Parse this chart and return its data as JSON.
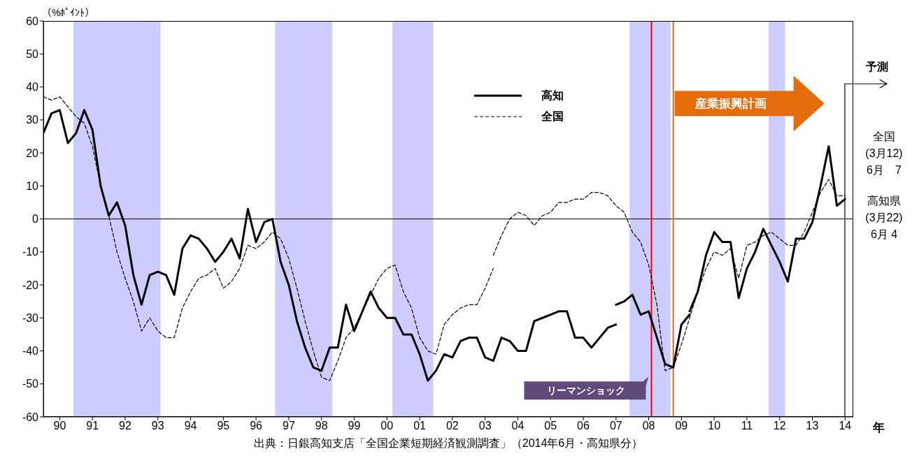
{
  "chart_data": {
    "type": "line",
    "ylabel": "（%ﾎﾟｲﾝﾄ）",
    "xlabel": "年",
    "xlim": [
      "1990-01",
      "2014-10"
    ],
    "ylim": [
      -60,
      60
    ],
    "yticks": [
      -60,
      -50,
      -40,
      -30,
      -20,
      -10,
      0,
      10,
      20,
      30,
      40,
      50,
      60
    ],
    "xticks": [
      {
        "value": "1990-07",
        "label": "90"
      },
      {
        "value": "1991-07",
        "label": "91"
      },
      {
        "value": "1992-07",
        "label": "92"
      },
      {
        "value": "1993-07",
        "label": "93"
      },
      {
        "value": "1994-07",
        "label": "94"
      },
      {
        "value": "1995-07",
        "label": "95"
      },
      {
        "value": "1996-07",
        "label": "96"
      },
      {
        "value": "1997-07",
        "label": "97"
      },
      {
        "value": "1998-07",
        "label": "98"
      },
      {
        "value": "1999-07",
        "label": "99"
      },
      {
        "value": "2000-07",
        "label": "00"
      },
      {
        "value": "2001-07",
        "label": "01"
      },
      {
        "value": "2002-07",
        "label": "02"
      },
      {
        "value": "2003-07",
        "label": "03"
      },
      {
        "value": "2004-07",
        "label": "04"
      },
      {
        "value": "2005-07",
        "label": "05"
      },
      {
        "value": "2006-07",
        "label": "06"
      },
      {
        "value": "2007-07",
        "label": "07"
      },
      {
        "value": "2008-07",
        "label": "08"
      },
      {
        "value": "2009-07",
        "label": "09"
      },
      {
        "value": "2010-07",
        "label": "10"
      },
      {
        "value": "2011-07",
        "label": "11"
      },
      {
        "value": "2012-07",
        "label": "12"
      },
      {
        "value": "2013-07",
        "label": "13"
      },
      {
        "value": "2014-07",
        "label": "14"
      }
    ],
    "grid": false,
    "legend": "top",
    "series": [
      {
        "name": "高知",
        "color": "#000000",
        "line_style": "solid",
        "x": [
          "1990-01",
          "1990-04",
          "1990-07",
          "1990-10",
          "1991-01",
          "1991-04",
          "1991-07",
          "1991-10",
          "1992-01",
          "1992-04",
          "1992-07",
          "1992-10",
          "1993-01",
          "1993-04",
          "1993-07",
          "1993-10",
          "1994-01",
          "1994-04",
          "1994-07",
          "1994-10",
          "1995-01",
          "1995-04",
          "1995-07",
          "1995-10",
          "1996-01",
          "1996-04",
          "1996-07",
          "1996-10",
          "1997-01",
          "1997-04",
          "1997-07",
          "1997-10",
          "1998-01",
          "1998-04",
          "1998-07",
          "1998-10",
          "1999-01",
          "1999-04",
          "1999-07",
          "1999-10",
          "2000-01",
          "2000-04",
          "2000-07",
          "2000-10",
          "2001-01",
          "2001-04",
          "2001-07",
          "2001-10",
          "2002-01",
          "2002-04",
          "2002-07",
          "2002-10",
          "2003-01",
          "2003-04",
          "2003-07",
          "2003-10",
          "2004-01",
          "2004-04",
          "2004-07",
          "2004-10",
          "2005-01",
          "2005-04",
          "2005-07",
          "2005-10",
          "2006-01",
          "2006-04",
          "2006-07",
          "2006-10",
          "2007-01",
          "2007-04",
          "2007-07"
        ],
        "values": [
          26,
          32,
          33,
          23,
          26,
          33,
          27,
          10,
          1,
          5,
          -2,
          -17,
          -26,
          -17,
          -16,
          -17,
          -23,
          -9,
          -5,
          -6,
          -9,
          -13,
          -10,
          -6,
          -12,
          3,
          -7,
          -1,
          0,
          -13,
          -20,
          -31,
          -39,
          -45,
          -46,
          -39,
          -39,
          -26,
          -34,
          -28,
          -22,
          -27,
          -30,
          -30,
          -35,
          -35,
          -41,
          -49,
          -46,
          -41,
          -42,
          -37,
          -36,
          -36,
          -42,
          -43,
          -36,
          -37,
          -40,
          -40,
          -31,
          -30,
          -29,
          -28,
          -28,
          -36,
          -36,
          -39,
          -36,
          -33,
          -32
        ]
      },
      {
        "color": "#000000",
        "line_style": "solid",
        "x": [
          "2007-07",
          "2007-10",
          "2008-01",
          "2008-04",
          "2008-07",
          "2008-10",
          "2009-01",
          "2009-04",
          "2009-07",
          "2009-10"
        ],
        "values": [
          -26,
          -25,
          -23,
          -29,
          -28,
          -36,
          -44,
          -45,
          -32,
          -29
        ]
      },
      {
        "color": "#000000",
        "line_style": "solid",
        "x": [
          "2009-10",
          "2010-01",
          "2010-04",
          "2010-07",
          "2010-10",
          "2011-01",
          "2011-04",
          "2011-07",
          "2011-10",
          "2012-01",
          "2012-04",
          "2012-07",
          "2012-10",
          "2013-01",
          "2013-04",
          "2013-07",
          "2013-10",
          "2014-01",
          "2014-04",
          "2014-07"
        ],
        "values": [
          -28,
          -22,
          -11,
          -4,
          -7,
          -7,
          -24,
          -15,
          -10,
          -3,
          -8,
          -13,
          -19,
          -6,
          -6,
          -1,
          10,
          22,
          4,
          6
        ]
      },
      {
        "name": "全国",
        "color": "#000000",
        "line_style": "dashed",
        "x": [
          "1990-01",
          "1990-04",
          "1990-07",
          "1990-10",
          "1991-01",
          "1991-04",
          "1991-07",
          "1991-10",
          "1992-01",
          "1992-04",
          "1992-07",
          "1992-10",
          "1993-01",
          "1993-04",
          "1993-07",
          "1993-10",
          "1994-01",
          "1994-04",
          "1994-07",
          "1994-10",
          "1995-01",
          "1995-04",
          "1995-07",
          "1995-10",
          "1996-01",
          "1996-04",
          "1996-07",
          "1996-10",
          "1997-01",
          "1997-04",
          "1997-07",
          "1997-10",
          "1998-01",
          "1998-04",
          "1998-07",
          "1998-10",
          "1999-01",
          "1999-04",
          "1999-07",
          "1999-10",
          "2000-01",
          "2000-04",
          "2000-07",
          "2000-10",
          "2001-01",
          "2001-04",
          "2001-07",
          "2001-10",
          "2002-01",
          "2002-04",
          "2002-07",
          "2002-10",
          "2003-01",
          "2003-04",
          "2003-07",
          "2003-10"
        ],
        "values": [
          37,
          36,
          37,
          34,
          31,
          29,
          22,
          10,
          1,
          -10,
          -18,
          -25,
          -34,
          -30,
          -34,
          -36,
          -36,
          -27,
          -22,
          -18,
          -17,
          -15,
          -21,
          -19,
          -15,
          -8,
          -9,
          -7,
          -4,
          -6,
          -12,
          -21,
          -31,
          -40,
          -48,
          -49,
          -43,
          -36,
          -33,
          -28,
          -23,
          -18,
          -15,
          -14,
          -22,
          -27,
          -36,
          -40,
          -41,
          -32,
          -29,
          -27,
          -26,
          -26,
          -21,
          -15
        ]
      },
      {
        "color": "#000000",
        "line_style": "dashed",
        "x": [
          "2003-10",
          "2004-01",
          "2004-04",
          "2004-07",
          "2004-10",
          "2005-01",
          "2005-04",
          "2005-07",
          "2005-10",
          "2006-01",
          "2006-04",
          "2006-07",
          "2006-10",
          "2007-01",
          "2007-04",
          "2007-07",
          "2007-10",
          "2008-01",
          "2008-04",
          "2008-07",
          "2008-10",
          "2009-01",
          "2009-04",
          "2009-07",
          "2009-10",
          "2010-01",
          "2010-04",
          "2010-07",
          "2010-10",
          "2011-01",
          "2011-04",
          "2011-07",
          "2011-10",
          "2012-01",
          "2012-04",
          "2012-07",
          "2012-10",
          "2013-01",
          "2013-04",
          "2013-07",
          "2013-10",
          "2014-01",
          "2014-04",
          "2014-07"
        ],
        "values": [
          -11,
          -5,
          0,
          2,
          1,
          -2,
          1,
          2,
          5,
          5,
          6,
          6,
          8,
          8,
          7,
          4,
          2,
          -4,
          -7,
          -14,
          -26,
          -46,
          -45,
          -38,
          -30,
          -22,
          -15,
          -10,
          -11,
          -9,
          -18,
          -8,
          -7,
          -5,
          -4,
          -6,
          -8,
          -8,
          -4,
          2,
          8,
          12,
          7,
          7
        ]
      }
    ],
    "bands": [
      {
        "axis": "x",
        "from": "1990-12",
        "to": "1993-08",
        "color": "#ccccff"
      },
      {
        "axis": "x",
        "from": "1997-02",
        "to": "1998-11",
        "color": "#ccccff"
      },
      {
        "axis": "x",
        "from": "2000-09",
        "to": "2001-12",
        "color": "#ccccff"
      },
      {
        "axis": "x",
        "from": "2007-12",
        "to": "2009-03",
        "color": "#ccccff"
      },
      {
        "axis": "x",
        "from": "2012-03",
        "to": "2012-09",
        "color": "#ccccff"
      }
    ],
    "ref_lines": [
      {
        "axis": "y",
        "value": 0,
        "color": "#000000"
      },
      {
        "axis": "x",
        "value": "2008-08",
        "color": "#ff0000"
      },
      {
        "axis": "x",
        "value": "2009-04",
        "color": "#e46c0a"
      }
    ],
    "annotations": [
      "出典：日銀高知支店「全国企業短期経済観測調査」（2014年6月・高知県分）",
      "全国\n(3月12)\n6月　7",
      "高知県\n(3月22)\n6月 4",
      "予測",
      {
        "text": "リーマンショック",
        "x": "2008-08",
        "y": -52
      },
      {
        "text": "産業振興計画",
        "x": "2009-04",
        "y": 35
      }
    ]
  }
}
